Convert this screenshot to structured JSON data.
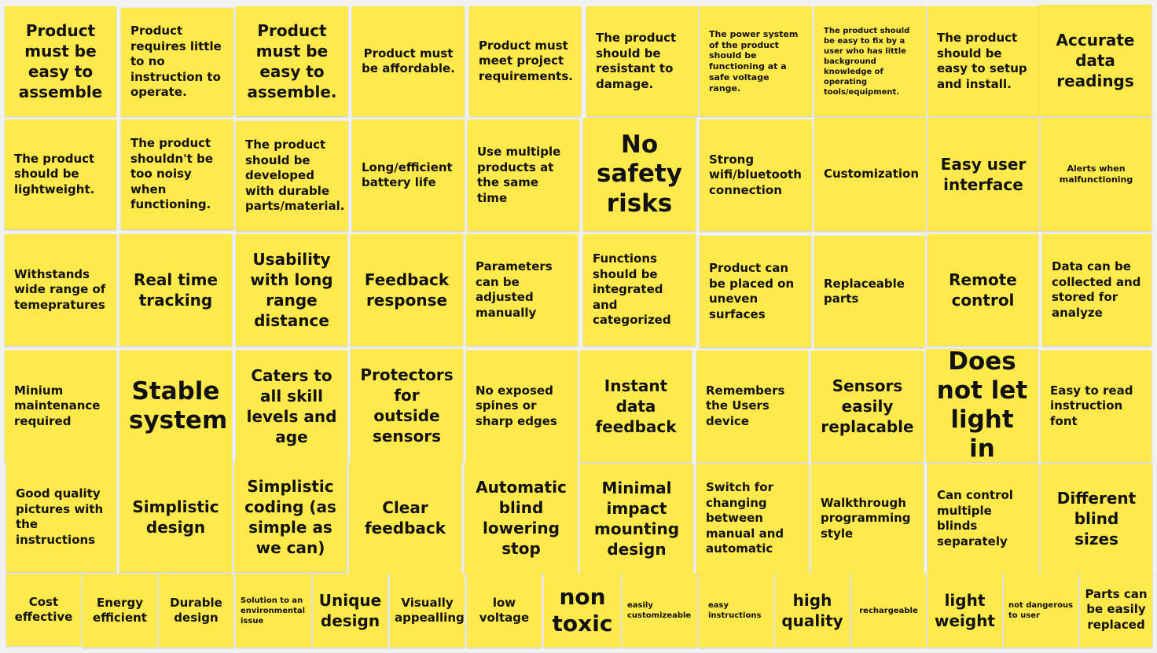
{
  "board": {
    "background": "#f1f1f1",
    "note_color": "#ffe94b",
    "rows": [
      [
        "Product must be easy to assemble",
        "Product requires little to no instruction to operate.",
        "Product must be easy to assemble.",
        "Product must be affordable.",
        "Product must meet project requirements.",
        "The product should be resistant to damage.",
        "The power system of the product should be functioning at a safe voltage range.",
        "The product should be easy to fix by a user who has little background knowledge of operating tools/equipment.",
        "The product should be easy to setup and install.",
        "Accurate data readings"
      ],
      [
        "The product should be lightweight.",
        "The product shouldn't be too noisy when functioning.",
        "The product should be developed with durable parts/material.",
        "Long/efficient battery life",
        "Use multiple products at the same time",
        "No safety risks",
        "Strong wifi/bluetooth connection",
        "Customization",
        "Easy user interface",
        "Alerts when malfunctioning"
      ],
      [
        "Withstands wide range of temepratures",
        "Real time tracking",
        "Usability with long range distance",
        "Feedback response",
        "Parameters can be adjusted manually",
        "Functions should be integrated and categorized",
        "Product can be placed on uneven surfaces",
        "Replaceable parts",
        "Remote control",
        "Data can be collected and stored for analyze"
      ],
      [
        "Minium maintenance required",
        "Stable system",
        "Caters to all skill levels and age",
        "Protectors for outside sensors",
        "No exposed spines or sharp edges",
        "Instant data feedback",
        "Remembers the Users device",
        "Sensors easily replacable",
        "Does not let light in",
        "Easy to read instruction font"
      ],
      [
        "Good quality pictures with the instructions",
        "Simplistic design",
        "Simplistic coding (as simple as we can)",
        "Clear feedback",
        "Automatic blind lowering stop",
        "Minimal impact mounting design",
        "Switch for changing between manual and automatic",
        "Walkthrough programming style",
        "Can control multiple blinds separately",
        "Different blind sizes"
      ],
      [
        "Cost effective",
        "Energy efficient",
        "Durable design",
        "Solution to an environmental issue",
        "Unique design",
        "Visually appealling",
        "low voltage",
        "non toxic",
        "easily customizeable",
        "easy instructions",
        "high quality",
        "rechargeable",
        "light weight",
        "not dangerous to user",
        "Parts can be easily replaced"
      ]
    ]
  }
}
